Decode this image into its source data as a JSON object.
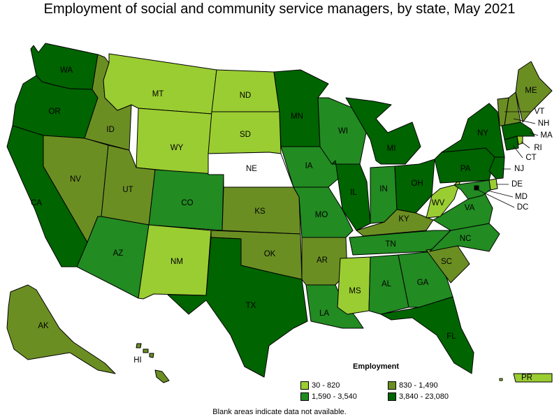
{
  "title": "Employment of social and community service managers, by state, May 2021",
  "note": "Blank areas indicate data not available.",
  "legend": {
    "title": "Employment",
    "bins": [
      {
        "label": "30 - 820",
        "color": "#9acd32"
      },
      {
        "label": "830 - 1,490",
        "color": "#6b8e23"
      },
      {
        "label": "1,590 - 3,540",
        "color": "#228b22"
      },
      {
        "label": "3,840 - 23,080",
        "color": "#006400"
      }
    ],
    "no_data_color": "#ffffff"
  },
  "chart_data": {
    "type": "choropleth",
    "value_field": "employment_bin",
    "states": [
      {
        "abbr": "WA",
        "bin": 3
      },
      {
        "abbr": "OR",
        "bin": 3
      },
      {
        "abbr": "CA",
        "bin": 3
      },
      {
        "abbr": "ID",
        "bin": 1
      },
      {
        "abbr": "NV",
        "bin": 1
      },
      {
        "abbr": "MT",
        "bin": 0
      },
      {
        "abbr": "WY",
        "bin": 0
      },
      {
        "abbr": "UT",
        "bin": 1
      },
      {
        "abbr": "AZ",
        "bin": 2
      },
      {
        "abbr": "CO",
        "bin": 2
      },
      {
        "abbr": "NM",
        "bin": 0
      },
      {
        "abbr": "ND",
        "bin": 0
      },
      {
        "abbr": "SD",
        "bin": 0
      },
      {
        "abbr": "NE",
        "bin": null
      },
      {
        "abbr": "KS",
        "bin": 1
      },
      {
        "abbr": "OK",
        "bin": 1
      },
      {
        "abbr": "TX",
        "bin": 3
      },
      {
        "abbr": "MN",
        "bin": 3
      },
      {
        "abbr": "IA",
        "bin": 2
      },
      {
        "abbr": "MO",
        "bin": 2
      },
      {
        "abbr": "AR",
        "bin": 1
      },
      {
        "abbr": "LA",
        "bin": 2
      },
      {
        "abbr": "WI",
        "bin": 2
      },
      {
        "abbr": "IL",
        "bin": 3
      },
      {
        "abbr": "MI",
        "bin": 3
      },
      {
        "abbr": "IN",
        "bin": 2
      },
      {
        "abbr": "OH",
        "bin": 3
      },
      {
        "abbr": "KY",
        "bin": 1
      },
      {
        "abbr": "TN",
        "bin": 2
      },
      {
        "abbr": "MS",
        "bin": 0
      },
      {
        "abbr": "AL",
        "bin": 2
      },
      {
        "abbr": "GA",
        "bin": 2
      },
      {
        "abbr": "FL",
        "bin": 3
      },
      {
        "abbr": "SC",
        "bin": 1
      },
      {
        "abbr": "NC",
        "bin": 2
      },
      {
        "abbr": "VA",
        "bin": 2
      },
      {
        "abbr": "WV",
        "bin": 0
      },
      {
        "abbr": "PA",
        "bin": 3
      },
      {
        "abbr": "NY",
        "bin": 3
      },
      {
        "abbr": "NJ",
        "bin": 3
      },
      {
        "abbr": "DE",
        "bin": 0
      },
      {
        "abbr": "MD",
        "bin": 2
      },
      {
        "abbr": "DC",
        "bin": 3
      },
      {
        "abbr": "VT",
        "bin": 1
      },
      {
        "abbr": "NH",
        "bin": 1
      },
      {
        "abbr": "ME",
        "bin": 1
      },
      {
        "abbr": "MA",
        "bin": 3
      },
      {
        "abbr": "CT",
        "bin": 3
      },
      {
        "abbr": "RI",
        "bin": 0
      },
      {
        "abbr": "AK",
        "bin": 1
      },
      {
        "abbr": "HI",
        "bin": 1
      },
      {
        "abbr": "PR",
        "bin": 0
      }
    ]
  }
}
